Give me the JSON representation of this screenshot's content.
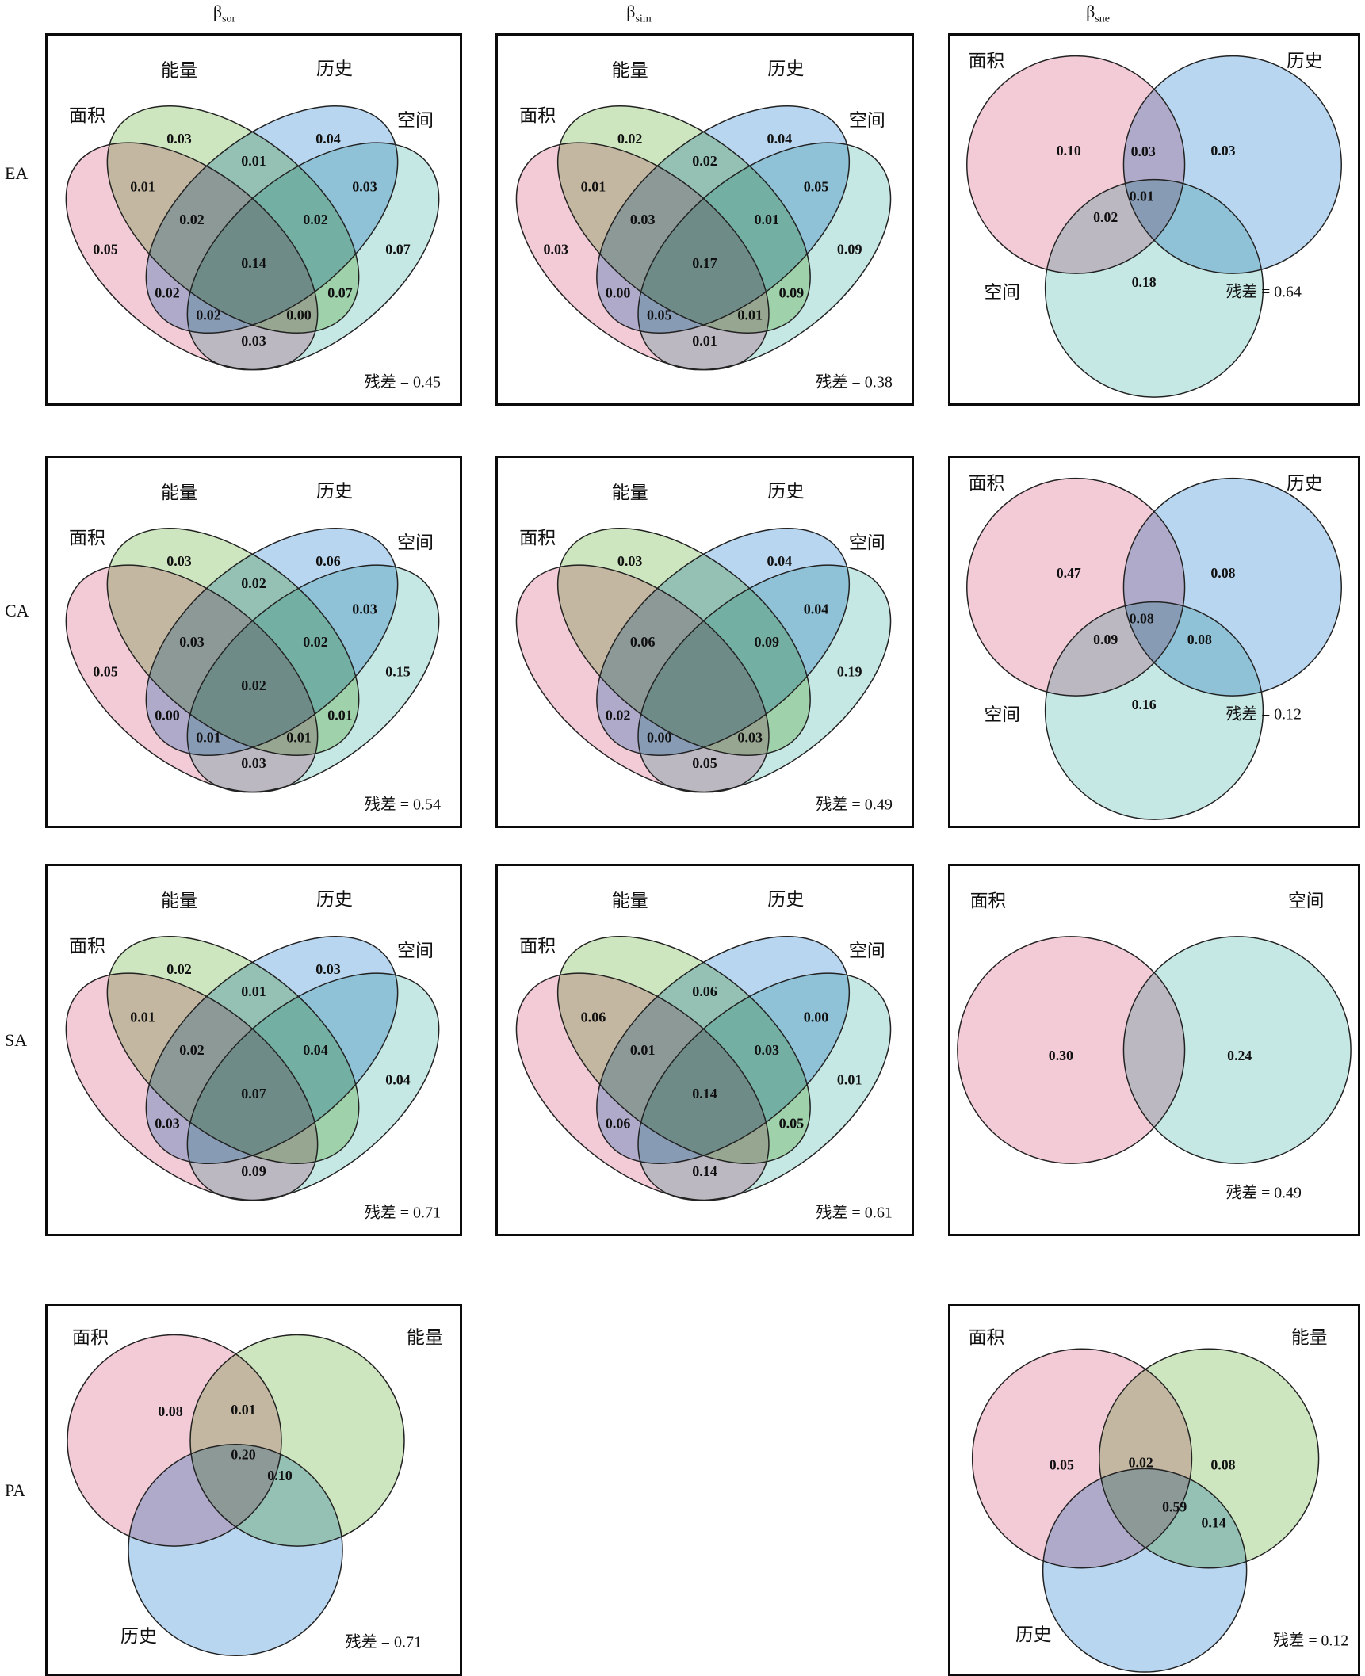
{
  "header": {
    "columns": [
      {
        "symbol": "β",
        "sub": "sor"
      },
      {
        "symbol": "β",
        "sub": "sim"
      },
      {
        "symbol": "β",
        "sub": "sne"
      }
    ]
  },
  "rows": [
    "EA",
    "CA",
    "SA",
    "PA"
  ],
  "labels": {
    "area": "面积",
    "energy": "能量",
    "history": "历史",
    "space": "空间",
    "residual": "残差"
  },
  "colors": {
    "area": "#f3cbd7",
    "energy": "#cde6bf",
    "history": "#b8d6f0",
    "space": "#c6e8e5",
    "outline": "#222222"
  },
  "chart_data": [
    {
      "panel": "EA-bsor",
      "row_label": "EA",
      "column": "β_sor",
      "type": "venn4",
      "sets": [
        "area",
        "energy",
        "history",
        "space"
      ],
      "values": {
        "A": "0.05",
        "B": "0.03",
        "C": "0.04",
        "D": "0.07",
        "AB": "0.01",
        "BC": "0.01",
        "CD": "0.03",
        "AC": "0.02",
        "BD": "0.07",
        "AD": "0.03",
        "ABC": "0.02",
        "BCD": "0.02",
        "ACD": "0.02",
        "ABD": "0.00",
        "ABCD": "0.14"
      },
      "residual": "0.45"
    },
    {
      "panel": "EA-bsim",
      "row_label": "EA",
      "column": "β_sim",
      "type": "venn4",
      "sets": [
        "area",
        "energy",
        "history",
        "space"
      ],
      "values": {
        "A": "0.03",
        "B": "0.02",
        "C": "0.04",
        "D": "0.09",
        "AB": "0.01",
        "BC": "0.02",
        "CD": "0.05",
        "AC": "0.00",
        "BD": "0.09",
        "AD": "0.01",
        "ABC": "0.03",
        "BCD": "0.01",
        "ACD": "0.05",
        "ABD": "0.01",
        "ABCD": "0.17"
      },
      "residual": "0.38"
    },
    {
      "panel": "EA-bsne",
      "row_label": "EA",
      "column": "β_sne",
      "type": "venn3",
      "sets": [
        "area",
        "history",
        "space"
      ],
      "values": {
        "A": "0.10",
        "B": "0.03",
        "C": "0.18",
        "AB": "0.03",
        "AC": "0.02",
        "ABC": "0.01"
      },
      "residual": "0.64"
    },
    {
      "panel": "CA-bsor",
      "row_label": "CA",
      "column": "β_sor",
      "type": "venn4",
      "sets": [
        "area",
        "energy",
        "history",
        "space"
      ],
      "values": {
        "A": "0.05",
        "B": "0.03",
        "C": "0.06",
        "D": "0.15",
        "BC": "0.02",
        "CD": "0.03",
        "AC": "0.00",
        "BD": "0.01",
        "AD": "0.03",
        "ABC": "0.03",
        "BCD": "0.02",
        "ACD": "0.01",
        "ABD": "0.01",
        "ABCD": "0.02"
      },
      "residual": "0.54"
    },
    {
      "panel": "CA-bsim",
      "row_label": "CA",
      "column": "β_sim",
      "type": "venn4",
      "sets": [
        "area",
        "energy",
        "history",
        "space"
      ],
      "values": {
        "B": "0.03",
        "C": "0.04",
        "D": "0.19",
        "CD": "0.04",
        "AC": "0.02",
        "AD": "0.05",
        "ABC": "0.06",
        "BCD": "0.09",
        "ACD": "0.00",
        "ABD": "0.03"
      },
      "residual": "0.49"
    },
    {
      "panel": "CA-bsne",
      "row_label": "CA",
      "column": "β_sne",
      "type": "venn3",
      "sets": [
        "area",
        "history",
        "space"
      ],
      "values": {
        "A": "0.47",
        "B": "0.08",
        "C": "0.16",
        "AC": "0.09",
        "BC": "0.08",
        "ABC": "0.08"
      },
      "residual": "0.12"
    },
    {
      "panel": "SA-bsor",
      "row_label": "SA",
      "column": "β_sor",
      "type": "venn4",
      "sets": [
        "area",
        "energy",
        "history",
        "space"
      ],
      "values": {
        "B": "0.02",
        "C": "0.03",
        "D": "0.04",
        "AB": "0.01",
        "BC": "0.01",
        "AC": "0.03",
        "AD": "0.09",
        "ABC": "0.02",
        "BCD": "0.04",
        "ABCD": "0.07"
      },
      "residual": "0.71"
    },
    {
      "panel": "SA-bsim",
      "row_label": "SA",
      "column": "β_sim",
      "type": "venn4",
      "sets": [
        "area",
        "energy",
        "history",
        "space"
      ],
      "values": {
        "D": "0.01",
        "AB": "0.06",
        "BC": "0.06",
        "CD": "0.00",
        "AC": "0.06",
        "BD": "0.05",
        "AD": "0.14",
        "ABC": "0.01",
        "BCD": "0.03",
        "ABCD": "0.14"
      },
      "residual": "0.61"
    },
    {
      "panel": "SA-bsne",
      "row_label": "SA",
      "column": "β_sne",
      "type": "venn2",
      "sets": [
        "area",
        "space"
      ],
      "values": {
        "A": "0.30",
        "B": "0.24"
      },
      "residual": "0.49"
    },
    {
      "panel": "PA-bsor",
      "row_label": "PA",
      "column": "β_sor",
      "type": "venn3",
      "sets": [
        "area",
        "energy",
        "history"
      ],
      "values": {
        "A": "0.08",
        "AB": "0.01",
        "ABC": "0.20",
        "BC": "0.10"
      },
      "residual": "0.71"
    },
    {
      "panel": "PA-bsim",
      "row_label": "PA",
      "column": "β_sim",
      "type": "none",
      "values": {}
    },
    {
      "panel": "PA-bsne",
      "row_label": "PA",
      "column": "β_sne",
      "type": "venn3",
      "sets": [
        "area",
        "energy",
        "history"
      ],
      "values": {
        "A": "0.05",
        "B": "0.08",
        "AB": "0.02",
        "ABC": "0.59",
        "BC": "0.14"
      },
      "residual": "0.12"
    }
  ]
}
